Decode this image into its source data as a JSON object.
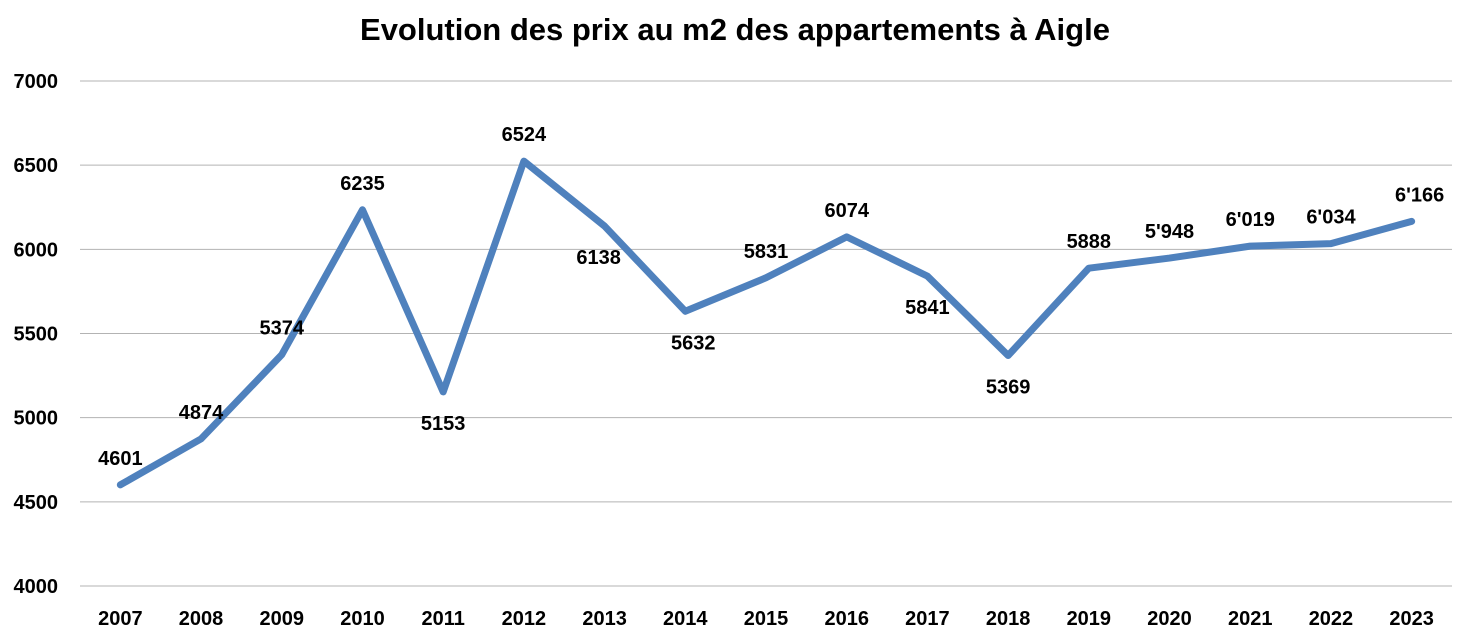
{
  "chart_data": {
    "type": "line",
    "title": "Evolution des prix au m2 des appartements à Aigle",
    "xlabel": "",
    "ylabel": "",
    "ylim": [
      4000,
      7000
    ],
    "yticks": [
      "4000",
      "4500",
      "5000",
      "5500",
      "6000",
      "6500",
      "7000"
    ],
    "grid": true,
    "legend": "none",
    "categories": [
      "2007",
      "2008",
      "2009",
      "2010",
      "2011",
      "2012",
      "2013",
      "2014",
      "2015",
      "2016",
      "2017",
      "2018",
      "2019",
      "2020",
      "2021",
      "2022",
      "2023"
    ],
    "series": [
      {
        "color": "#4f81bd",
        "values": [
          4601,
          4874,
          5374,
          6235,
          5153,
          6524,
          6138,
          5632,
          5831,
          6074,
          5841,
          5369,
          5888,
          5948,
          6019,
          6034,
          6166
        ],
        "labels": [
          "4601",
          "4874",
          "5374",
          "6235",
          "5153",
          "6524",
          "6138",
          "5632",
          "5831",
          "6074",
          "5841",
          "5369",
          "5888",
          "5'948",
          "6'019",
          "6'034",
          "6'166"
        ]
      }
    ]
  }
}
